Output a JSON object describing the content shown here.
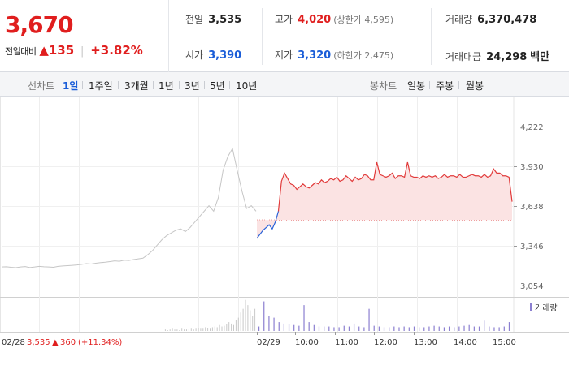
{
  "header": {
    "price": "3,670",
    "change_label": "전일대비",
    "change_arrow": "▲",
    "change_value": "135",
    "change_percent": "+3.82%",
    "stats": {
      "prev_close": {
        "label": "전일",
        "value": "3,535"
      },
      "high": {
        "label": "고가",
        "value": "4,020",
        "sub": "(상한가 4,595)"
      },
      "volume": {
        "label": "거래량",
        "value": "6,370,478"
      },
      "open": {
        "label": "시가",
        "value": "3,390"
      },
      "low": {
        "label": "저가",
        "value": "3,320",
        "sub": "(하한가 2,475)"
      },
      "turnover": {
        "label": "거래대금",
        "value": "24,298",
        "unit": "백만"
      }
    }
  },
  "tabs": {
    "line_chart_title": "선차트",
    "line_periods": [
      "1일",
      "1주일",
      "3개월",
      "1년",
      "3년",
      "5년",
      "10년"
    ],
    "active_period": "1일",
    "candle_chart_title": "봉차트",
    "candle_periods": [
      "일봉",
      "주봉",
      "월봉"
    ]
  },
  "chart_data": {
    "type": "line",
    "y_ticks": [
      "4,222",
      "3,930",
      "3,638",
      "3,346",
      "3,054"
    ],
    "ylim": [
      3054,
      4222
    ],
    "reference_price": 3535,
    "legend": "거래량",
    "x_tick_labels": [
      "02/29",
      "10:00",
      "11:00",
      "12:00",
      "13:00",
      "14:00",
      "15:00"
    ],
    "footer": {
      "date": "02/28",
      "price": "3,535",
      "arrow": "▲",
      "change": "360",
      "percent": "(+11.34%)"
    },
    "prev_day_series": {
      "name": "02/28",
      "values": [
        3190,
        3192,
        3188,
        3185,
        3190,
        3193,
        3186,
        3190,
        3195,
        3192,
        3190,
        3188,
        3195,
        3198,
        3200,
        3202,
        3205,
        3210,
        3215,
        3212,
        3218,
        3222,
        3225,
        3230,
        3235,
        3232,
        3240,
        3238,
        3245,
        3250,
        3255,
        3280,
        3310,
        3350,
        3390,
        3420,
        3440,
        3460,
        3470,
        3450,
        3480,
        3520,
        3560,
        3600,
        3640,
        3600,
        3700,
        3900,
        4000,
        4060,
        3900,
        3750,
        3620,
        3640,
        3600
      ]
    },
    "today_series": {
      "name": "02/29",
      "values": [
        3400,
        3430,
        3460,
        3480,
        3500,
        3470,
        3520,
        3600,
        3820,
        3880,
        3840,
        3800,
        3790,
        3760,
        3780,
        3800,
        3780,
        3770,
        3790,
        3810,
        3800,
        3830,
        3810,
        3820,
        3840,
        3830,
        3850,
        3820,
        3830,
        3860,
        3840,
        3820,
        3850,
        3830,
        3840,
        3870,
        3860,
        3830,
        3830,
        3960,
        3870,
        3860,
        3850,
        3860,
        3880,
        3840,
        3860,
        3860,
        3850,
        3960,
        3860,
        3850,
        3850,
        3840,
        3860,
        3850,
        3860,
        3850,
        3860,
        3840,
        3850,
        3870,
        3850,
        3860,
        3860,
        3850,
        3870,
        3850,
        3850,
        3860,
        3870,
        3860,
        3860,
        3850,
        3870,
        3850,
        3860,
        3910,
        3880,
        3880,
        3860,
        3860,
        3850,
        3670
      ]
    },
    "volume_prev_day": [
      2,
      2,
      1,
      2,
      3,
      2,
      2,
      1,
      3,
      2,
      2,
      2,
      3,
      2,
      3,
      4,
      3,
      3,
      5,
      4,
      3,
      5,
      6,
      5,
      8,
      6,
      7,
      9,
      12,
      10,
      8,
      15,
      18,
      25,
      30,
      42,
      35,
      28,
      20,
      30
    ],
    "volume_today": [
      6,
      40,
      20,
      18,
      12,
      10,
      9,
      8,
      7,
      35,
      12,
      8,
      6,
      6,
      6,
      5,
      5,
      7,
      6,
      10,
      6,
      5,
      30,
      7,
      6,
      5,
      5,
      6,
      5,
      6,
      5,
      6,
      5,
      5,
      6,
      7,
      6,
      5,
      6,
      5,
      6,
      7,
      8,
      6,
      6,
      14,
      6,
      5,
      5,
      6,
      12
    ]
  }
}
